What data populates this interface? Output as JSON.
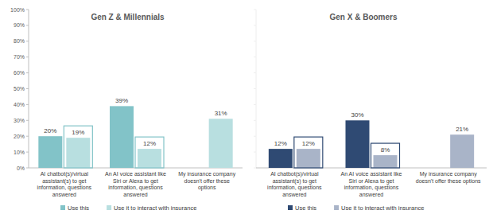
{
  "chart_data": [
    {
      "type": "bar",
      "title": "Gen Z & Millennials",
      "categories": [
        "AI chatbot(s)/virtual assistant(s) to get information, questions answered",
        "An AI voice assistant like Siri or Alexa to get information, questions answered",
        "My insurance company doesn't offer these options"
      ],
      "series": [
        {
          "name": "Use this",
          "color": "#82c3c8",
          "values": [
            20,
            39,
            null
          ],
          "value_labels": [
            "20%",
            "39%",
            null
          ]
        },
        {
          "name": "Use it to interact with insurance",
          "color": "#b8dfe0",
          "values": [
            19,
            12,
            31
          ],
          "value_labels": [
            "19%",
            "12%",
            "31%"
          ]
        }
      ],
      "ylim": [
        0,
        100
      ],
      "yticks": [
        {
          "value": 0,
          "label": "0%"
        },
        {
          "value": 10,
          "label": "10%"
        },
        {
          "value": 20,
          "label": "20%"
        },
        {
          "value": 30,
          "label": "30%"
        },
        {
          "value": 40,
          "label": "40%"
        },
        {
          "value": 50,
          "label": "50%"
        },
        {
          "value": 60,
          "label": "60%"
        },
        {
          "value": 70,
          "label": "70%"
        },
        {
          "value": 80,
          "label": "80%"
        },
        {
          "value": 90,
          "label": "90%"
        },
        {
          "value": 100,
          "label": "100%"
        }
      ],
      "grid": false,
      "data_labels": true,
      "legend": "bottom"
    },
    {
      "type": "bar",
      "title": "Gen X & Boomers",
      "categories": [
        "AI chatbot(s)/virtual assistant(s) to get information, questions answered",
        "An AI voice assistant like Siri or Alexa to get information, questions answered",
        "My insurance company doesn't offer these options"
      ],
      "series": [
        {
          "name": "Use this",
          "color": "#2f4a73",
          "values": [
            12,
            30,
            null
          ],
          "value_labels": [
            "12%",
            "30%",
            null
          ]
        },
        {
          "name": "Use it to interact with insurance",
          "color": "#a9b4c8",
          "values": [
            12,
            8,
            21
          ],
          "value_labels": [
            "12%",
            "8%",
            "21%"
          ]
        }
      ],
      "ylim": [
        0,
        100
      ],
      "yticks": [
        0,
        10,
        20,
        30,
        40,
        50,
        60,
        70,
        80,
        90,
        100
      ],
      "grid": false,
      "data_labels": true,
      "legend": "bottom",
      "tick_labels": false
    }
  ]
}
